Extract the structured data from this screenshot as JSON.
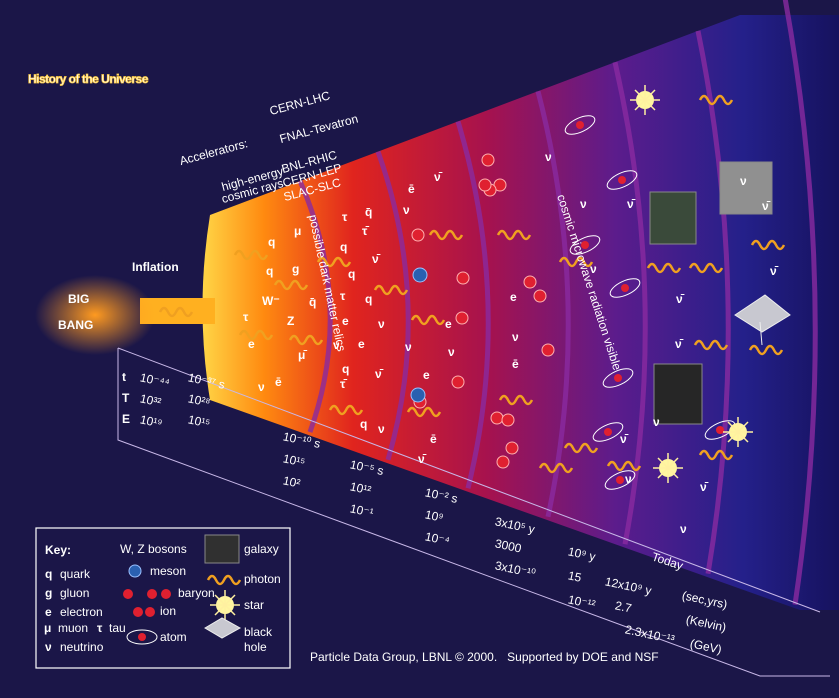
{
  "title": "History of the Universe",
  "big_bang": [
    "BIG",
    "BANG"
  ],
  "inflation": "Inflation",
  "accelerators": {
    "label": "Accelerators:",
    "cosmic_rays": [
      "high-energy",
      "cosmic rays"
    ],
    "machines": [
      "CERN-LHC",
      "FNAL-Tevatron",
      "BNL-RHIC",
      "CERN-LEP",
      "SLAC-SLC"
    ]
  },
  "bands": [
    "possible dark matter relics",
    "cosmic microwave radiation visible"
  ],
  "timeline": {
    "row_labels": [
      "t",
      "T",
      "E"
    ],
    "columns": [
      [
        "10⁻⁴⁴",
        "10³²",
        "10¹⁹"
      ],
      [
        "10⁻³⁷ s",
        "10²⁸",
        "10¹⁵"
      ],
      [
        "10⁻¹⁰ s",
        "10¹⁵",
        "10²"
      ],
      [
        "10⁻⁵ s",
        "10¹²",
        "10⁻¹"
      ],
      [
        "10⁻² s",
        "10⁹",
        "10⁻⁴"
      ],
      [
        "3x10⁵ y",
        "3000",
        "3x10⁻¹⁰"
      ],
      [
        "10⁹ y",
        "15",
        "10⁻¹²"
      ],
      [
        "12x10⁹ y",
        "2.7",
        "2.3x10⁻¹³"
      ]
    ],
    "today": "Today",
    "units": [
      "(sec,yrs)",
      "(Kelvin)",
      "(GeV)"
    ]
  },
  "particles": [
    "q",
    "μ",
    "q",
    "g",
    "W⁻",
    "τ",
    "Z",
    "q̄",
    "e",
    "ν",
    "ē",
    "μ̄",
    "τ",
    "q̄",
    "τ̄",
    "q",
    "ν̄",
    "q",
    "τ",
    "q",
    "e",
    "ν",
    "ν̄",
    "e",
    "q",
    "ν̄",
    "τ̄",
    "q",
    "ν",
    "ē",
    "ν",
    "ν̄",
    "ν",
    "e",
    "ν",
    "ē",
    "ν̄",
    "e",
    "ν",
    "ē",
    "ν",
    "ν",
    "ν̄",
    "ν",
    "ν̄",
    "ν̄",
    "ν",
    "ν̄",
    "ν",
    "ν̄",
    "ν",
    "ν",
    "ν̄",
    "ν̄",
    "e"
  ],
  "key": {
    "title": "Key:",
    "bosons": "W, Z bosons",
    "items": [
      [
        "q",
        "quark"
      ],
      [
        "g",
        "gluon"
      ],
      [
        "e",
        "electron"
      ],
      [
        "μ",
        "muon"
      ],
      [
        "τ",
        "tau"
      ],
      [
        "ν",
        "neutrino"
      ]
    ],
    "labels": [
      "meson",
      "baryon",
      "ion",
      "atom",
      "galaxy",
      "photon",
      "star",
      "black",
      "hole"
    ]
  },
  "credit": "Particle Data Group, LBNL © 2000.   Supported by DOE and NSF"
}
